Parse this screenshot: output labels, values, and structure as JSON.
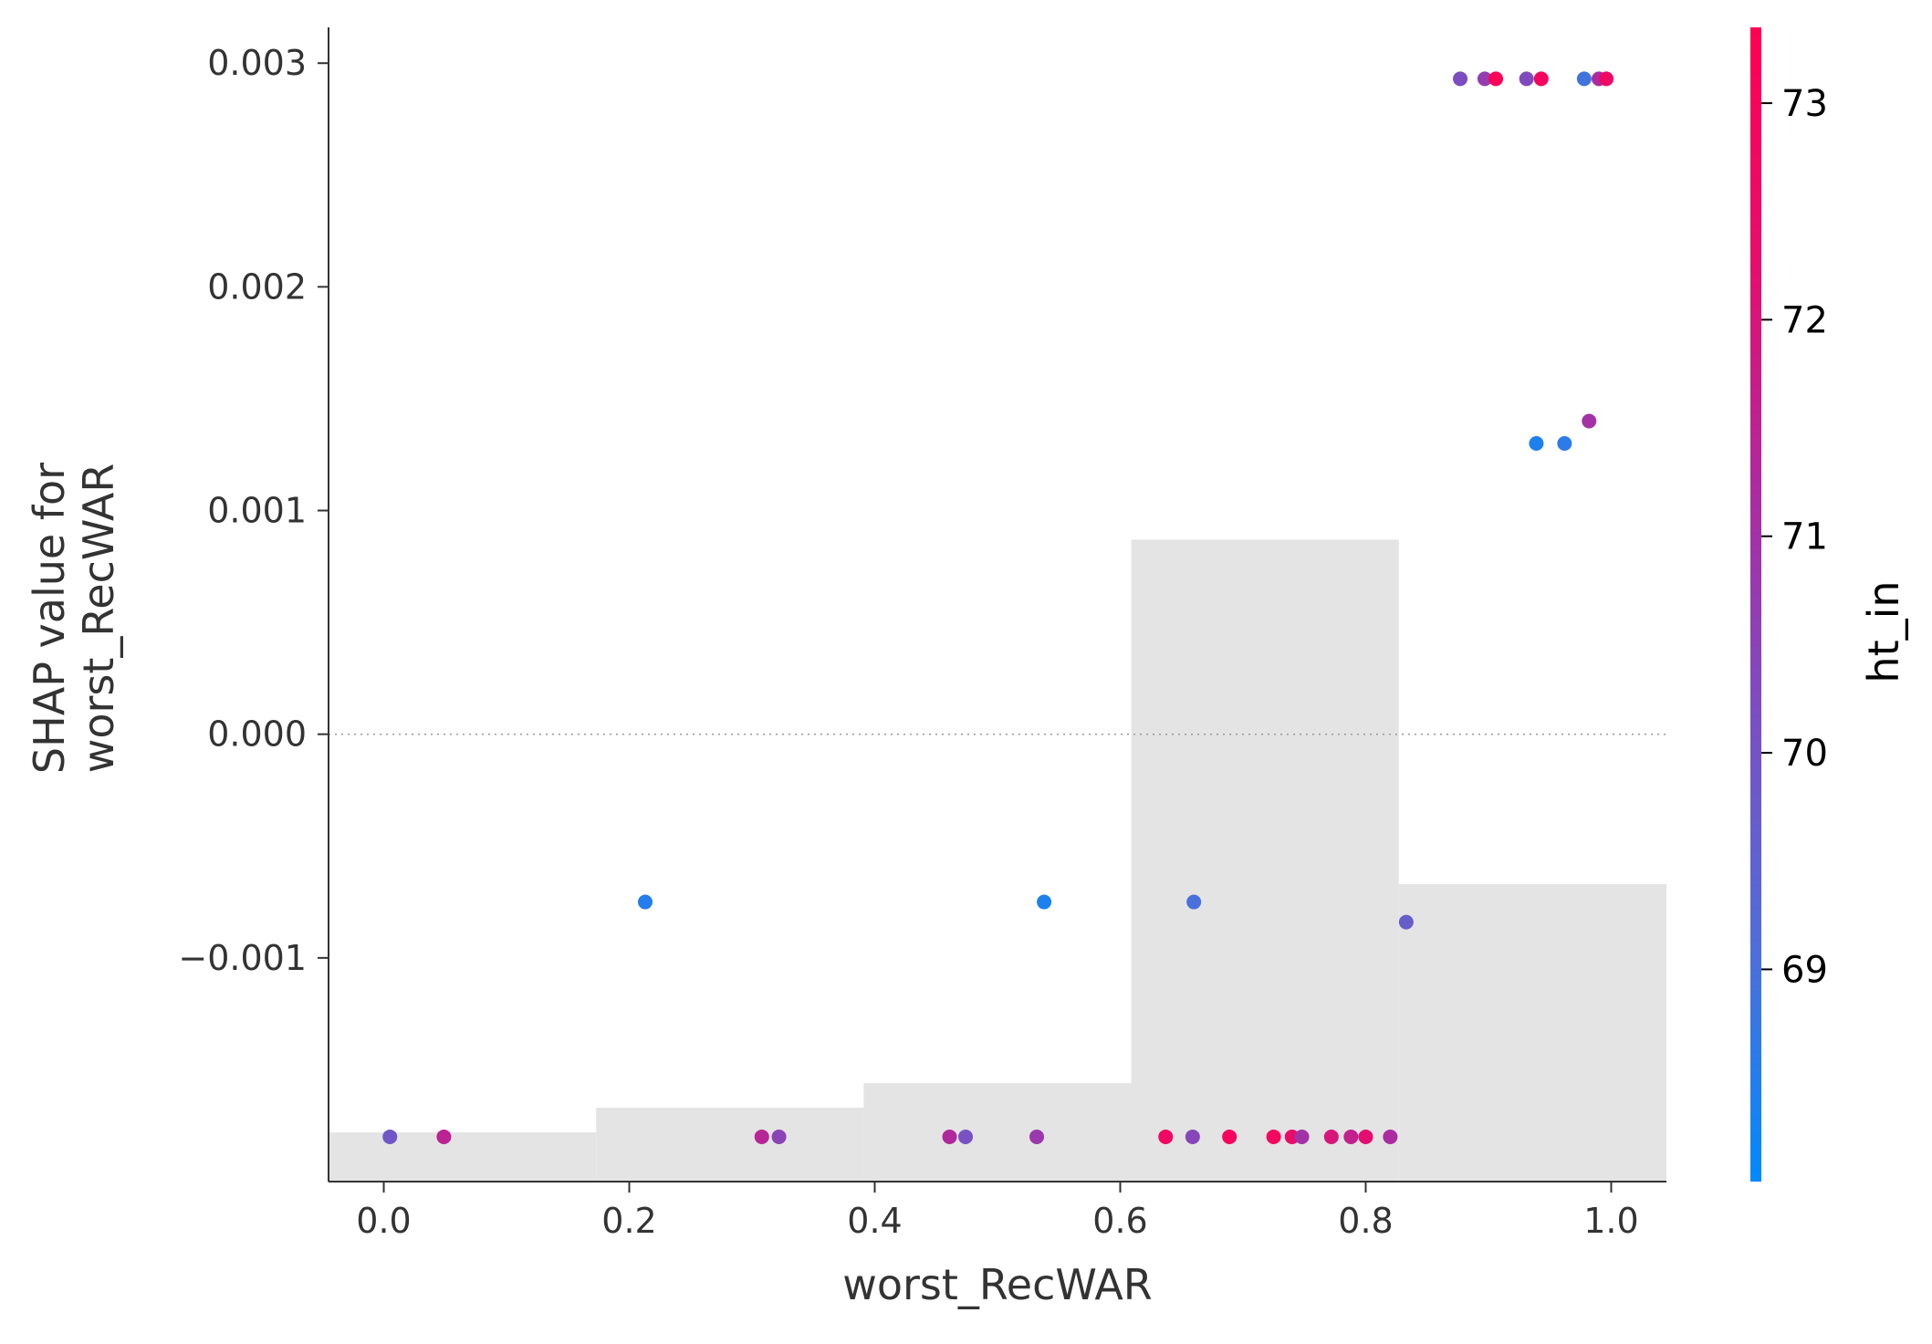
{
  "chart_data": {
    "type": "scatter",
    "title": "",
    "xlabel": "worst_RecWAR",
    "ylabel_lines": [
      "SHAP value for",
      "worst_RecWAR"
    ],
    "xlim": [
      -0.045,
      1.045
    ],
    "ylim": [
      -0.002,
      0.00316
    ],
    "x_ticks": [
      {
        "value": 0.0,
        "label": "0.0"
      },
      {
        "value": 0.2,
        "label": "0.2"
      },
      {
        "value": 0.4,
        "label": "0.4"
      },
      {
        "value": 0.6,
        "label": "0.6"
      },
      {
        "value": 0.8,
        "label": "0.8"
      },
      {
        "value": 1.0,
        "label": "1.0"
      }
    ],
    "y_ticks": [
      {
        "value": -0.001,
        "label": "−0.001"
      },
      {
        "value": 0.0,
        "label": "0.000"
      },
      {
        "value": 0.001,
        "label": "0.001"
      },
      {
        "value": 0.002,
        "label": "0.002"
      },
      {
        "value": 0.003,
        "label": "0.003"
      }
    ],
    "zero_line": 0.0,
    "histogram": {
      "color": "#e4e4e4",
      "bins": [
        {
          "x0": -0.045,
          "x1": 0.173,
          "top": -0.00178
        },
        {
          "x0": 0.173,
          "x1": 0.391,
          "top": -0.00167
        },
        {
          "x0": 0.391,
          "x1": 0.609,
          "top": -0.00156
        },
        {
          "x0": 0.609,
          "x1": 0.827,
          "top": 0.00087
        },
        {
          "x0": 0.827,
          "x1": 1.045,
          "top": -0.00067
        }
      ]
    },
    "colorbar": {
      "label": "ht_in",
      "min": 68.02,
      "max": 73.35,
      "ticks": [
        {
          "value": 69,
          "label": "69"
        },
        {
          "value": 70,
          "label": "70"
        },
        {
          "value": 71,
          "label": "71"
        },
        {
          "value": 72,
          "label": "72"
        },
        {
          "value": 73,
          "label": "73"
        }
      ],
      "gradient": [
        "#008afb",
        "#4f6ed9",
        "#7a4fc1",
        "#ad2aa0",
        "#e70d6c",
        "#ff0052"
      ]
    },
    "points": [
      {
        "x": 0.005,
        "y": -0.0018,
        "c": 69.9
      },
      {
        "x": 0.049,
        "y": -0.0018,
        "c": 71.5
      },
      {
        "x": 0.308,
        "y": -0.0018,
        "c": 71.4
      },
      {
        "x": 0.322,
        "y": -0.0018,
        "c": 70.5
      },
      {
        "x": 0.461,
        "y": -0.0018,
        "c": 71.3
      },
      {
        "x": 0.474,
        "y": -0.0018,
        "c": 70.1
      },
      {
        "x": 0.532,
        "y": -0.0018,
        "c": 70.8
      },
      {
        "x": 0.637,
        "y": -0.0018,
        "c": 72.7
      },
      {
        "x": 0.659,
        "y": -0.0018,
        "c": 70.4
      },
      {
        "x": 0.689,
        "y": -0.0018,
        "c": 72.9
      },
      {
        "x": 0.725,
        "y": -0.0018,
        "c": 72.8
      },
      {
        "x": 0.74,
        "y": -0.0018,
        "c": 72.4
      },
      {
        "x": 0.748,
        "y": -0.0018,
        "c": 71.0
      },
      {
        "x": 0.772,
        "y": -0.0018,
        "c": 72.0
      },
      {
        "x": 0.788,
        "y": -0.0018,
        "c": 71.6
      },
      {
        "x": 0.8,
        "y": -0.0018,
        "c": 72.2
      },
      {
        "x": 0.82,
        "y": -0.0018,
        "c": 71.2
      },
      {
        "x": 0.213,
        "y": -0.00075,
        "c": 68.5
      },
      {
        "x": 0.538,
        "y": -0.00075,
        "c": 68.4
      },
      {
        "x": 0.66,
        "y": -0.00075,
        "c": 69.0
      },
      {
        "x": 0.833,
        "y": -0.00084,
        "c": 69.7
      },
      {
        "x": 0.877,
        "y": 0.00293,
        "c": 70.2
      },
      {
        "x": 0.897,
        "y": 0.00293,
        "c": 70.7
      },
      {
        "x": 0.906,
        "y": 0.00293,
        "c": 73.2
      },
      {
        "x": 0.931,
        "y": 0.00293,
        "c": 70.3
      },
      {
        "x": 0.943,
        "y": 0.00293,
        "c": 72.9
      },
      {
        "x": 0.978,
        "y": 0.00293,
        "c": 68.9
      },
      {
        "x": 0.99,
        "y": 0.00293,
        "c": 71.2
      },
      {
        "x": 0.996,
        "y": 0.00293,
        "c": 72.6
      },
      {
        "x": 0.939,
        "y": 0.0013,
        "c": 68.4
      },
      {
        "x": 0.962,
        "y": 0.0013,
        "c": 68.6
      },
      {
        "x": 0.982,
        "y": 0.0014,
        "c": 71.0
      }
    ]
  }
}
